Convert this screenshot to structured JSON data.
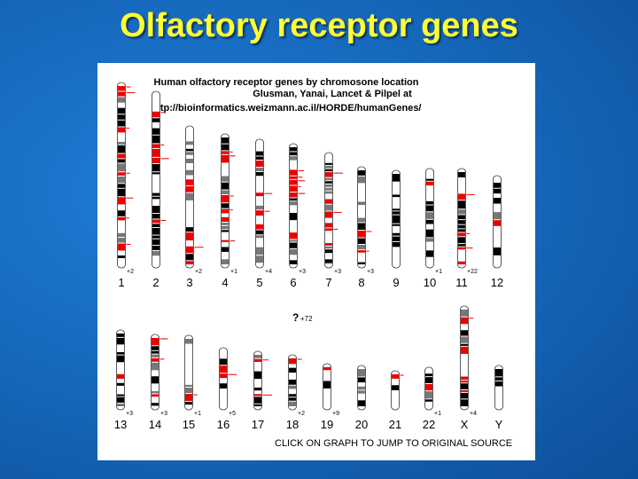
{
  "header": {
    "title": "Olfactory receptor genes"
  },
  "figure": {
    "caption": [
      "Human olfactory receptor genes by chromosone location",
      "Glusman, Yanai, Lancet & Pilpel at",
      "http://bioinformatics.weizmann.ac.il/HORDE/humanGenes/"
    ],
    "chromosomes": [
      {
        "label": "1",
        "note": "+2"
      },
      {
        "label": "2"
      },
      {
        "label": "3",
        "note": "+2"
      },
      {
        "label": "4",
        "note": "+1"
      },
      {
        "label": "5",
        "note": "+4"
      },
      {
        "label": "6",
        "note": "+3"
      },
      {
        "label": "7",
        "note": "+3"
      },
      {
        "label": "8",
        "note": "+3"
      },
      {
        "label": "9"
      },
      {
        "label": "10",
        "note": "+1"
      },
      {
        "label": "11",
        "note": "+22"
      },
      {
        "label": "12"
      },
      {
        "label": "13",
        "note": "+3"
      },
      {
        "label": "14",
        "note": "+3"
      },
      {
        "label": "15",
        "note": "+1"
      },
      {
        "label": "16",
        "note": "+5"
      },
      {
        "label": "17"
      },
      {
        "label": "18",
        "note": "+2"
      },
      {
        "label": "19",
        "note": "+9"
      },
      {
        "label": "20"
      },
      {
        "label": "21"
      },
      {
        "label": "22",
        "note": "+1"
      },
      {
        "label": "X",
        "note": "+4"
      },
      {
        "label": "Y"
      }
    ],
    "unplaced": {
      "mark": "?",
      "note": "+72"
    },
    "footer": "CLICK ON GRAPH TO JUMP TO ORIGINAL SOURCE"
  }
}
